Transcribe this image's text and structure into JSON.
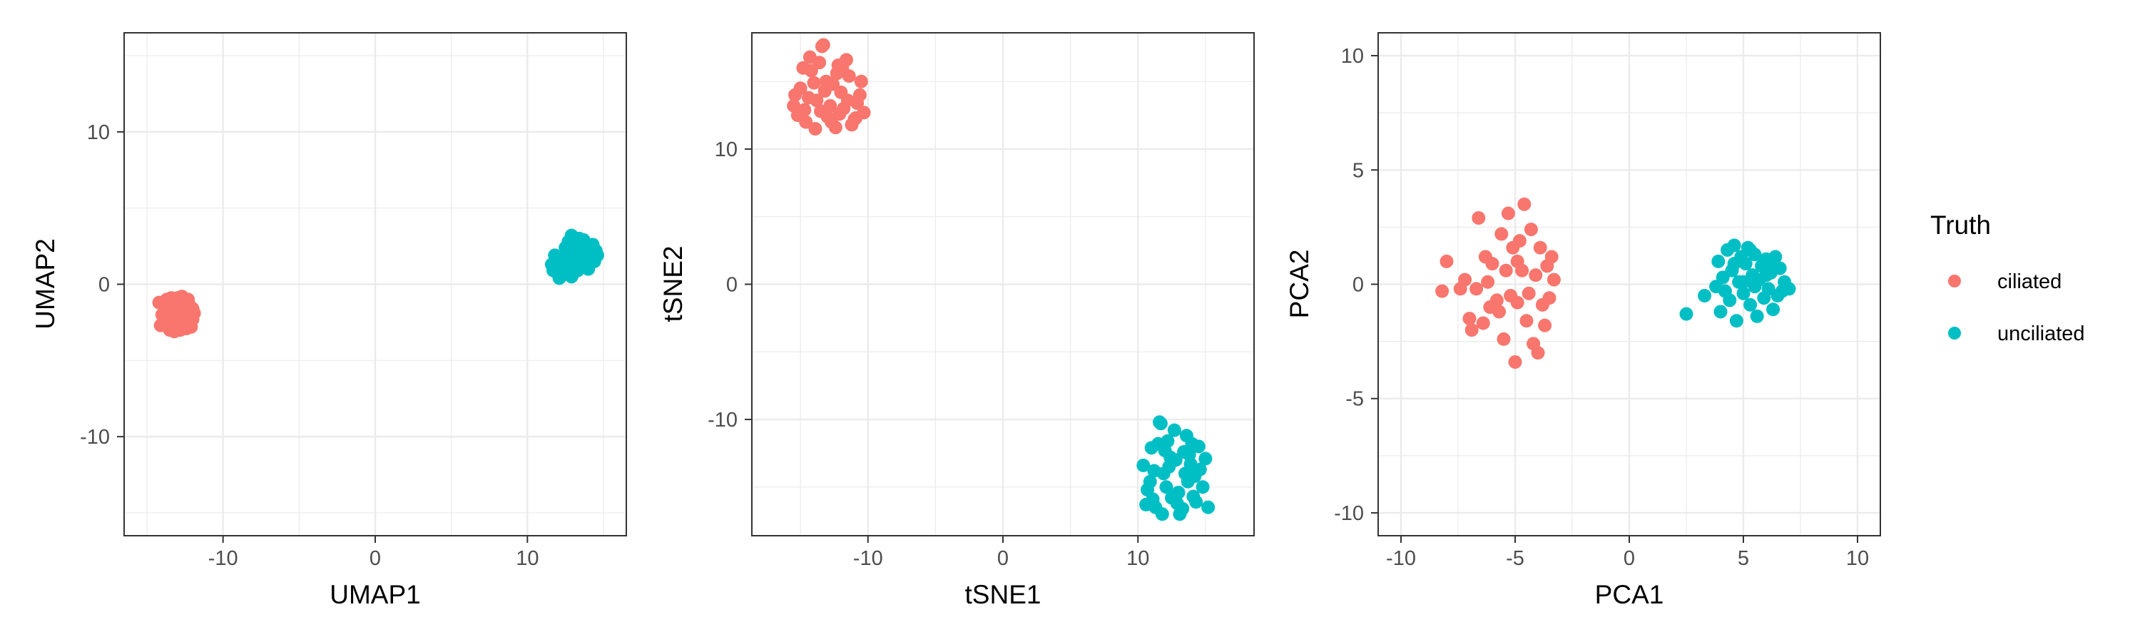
{
  "colors": {
    "ciliated": "#F8766D",
    "unciliated": "#00BFC4",
    "grid": "#ebebeb",
    "panel_border": "#333333"
  },
  "legend": {
    "title": "Truth",
    "entries": [
      {
        "label": "ciliated",
        "color": "#F8766D"
      },
      {
        "label": "unciliated",
        "color": "#00BFC4"
      }
    ]
  },
  "chart_data": [
    {
      "type": "scatter",
      "id": "umap",
      "xlabel": "UMAP1",
      "ylabel": "UMAP2",
      "xlim": [
        -16.5,
        16.5
      ],
      "ylim": [
        -16.5,
        16.5
      ],
      "x_ticks": [
        -10,
        0,
        10
      ],
      "y_ticks": [
        -10,
        0,
        10
      ],
      "x_tick_labels": [
        "-10",
        "0",
        "10"
      ],
      "y_tick_labels": [
        "-10",
        "0",
        "10"
      ],
      "grid": true,
      "series": [
        {
          "name": "ciliated",
          "points": [
            [
              -14.2,
              -1.2
            ],
            [
              -13.9,
              -2.6
            ],
            [
              -13.6,
              -1.8
            ],
            [
              -13.3,
              -2.9
            ],
            [
              -13.0,
              -0.9
            ],
            [
              -12.7,
              -2.2
            ],
            [
              -12.4,
              -1.5
            ],
            [
              -12.1,
              -2.8
            ],
            [
              -14.0,
              -2.0
            ],
            [
              -13.7,
              -1.0
            ],
            [
              -13.4,
              -2.4
            ],
            [
              -13.1,
              -1.7
            ],
            [
              -12.8,
              -3.0
            ],
            [
              -12.5,
              -1.1
            ],
            [
              -12.2,
              -2.5
            ],
            [
              -11.9,
              -1.9
            ],
            [
              -14.1,
              -2.7
            ],
            [
              -13.8,
              -1.4
            ],
            [
              -13.5,
              -3.0
            ],
            [
              -13.2,
              -2.1
            ],
            [
              -12.9,
              -1.3
            ],
            [
              -12.6,
              -2.6
            ],
            [
              -12.3,
              -1.0
            ],
            [
              -12.0,
              -2.3
            ],
            [
              -13.6,
              -2.5
            ],
            [
              -13.0,
              -1.6
            ],
            [
              -12.5,
              -2.0
            ],
            [
              -13.3,
              -1.2
            ],
            [
              -12.8,
              -2.8
            ],
            [
              -13.9,
              -1.9
            ],
            [
              -12.2,
              -1.4
            ],
            [
              -13.1,
              -2.6
            ],
            [
              -12.7,
              -0.8
            ],
            [
              -13.5,
              -1.5
            ],
            [
              -12.4,
              -2.9
            ],
            [
              -13.8,
              -2.3
            ],
            [
              -12.9,
              -2.2
            ],
            [
              -13.4,
              -0.9
            ],
            [
              -12.0,
              -1.6
            ],
            [
              -13.2,
              -3.1
            ]
          ]
        },
        {
          "name": "unciliated",
          "points": [
            [
              11.6,
              1.3
            ],
            [
              11.9,
              0.8
            ],
            [
              12.2,
              1.8
            ],
            [
              12.5,
              2.4
            ],
            [
              12.8,
              1.1
            ],
            [
              13.1,
              2.9
            ],
            [
              13.4,
              1.6
            ],
            [
              13.7,
              2.2
            ],
            [
              14.0,
              1.4
            ],
            [
              14.3,
              2.6
            ],
            [
              14.6,
              1.9
            ],
            [
              12.0,
              1.5
            ],
            [
              12.3,
              0.6
            ],
            [
              12.6,
              2.1
            ],
            [
              12.9,
              3.2
            ],
            [
              13.2,
              1.3
            ],
            [
              13.5,
              2.7
            ],
            [
              13.8,
              1.7
            ],
            [
              14.1,
              2.3
            ],
            [
              14.4,
              1.5
            ],
            [
              11.8,
              1.9
            ],
            [
              12.4,
              1.0
            ],
            [
              12.7,
              2.8
            ],
            [
              13.0,
              1.8
            ],
            [
              13.3,
              0.9
            ],
            [
              13.6,
              2.5
            ],
            [
              13.9,
              1.2
            ],
            [
              14.2,
              2.0
            ],
            [
              12.1,
              0.4
            ],
            [
              12.8,
              2.0
            ],
            [
              13.4,
              3.0
            ],
            [
              13.0,
              0.7
            ],
            [
              14.5,
              2.2
            ],
            [
              12.5,
              1.4
            ],
            [
              13.6,
              1.5
            ],
            [
              11.7,
              0.9
            ],
            [
              13.2,
              2.4
            ],
            [
              14.0,
              1.0
            ],
            [
              12.9,
              0.5
            ],
            [
              13.7,
              2.9
            ]
          ]
        }
      ]
    },
    {
      "type": "scatter",
      "id": "tsne",
      "xlabel": "tSNE1",
      "ylabel": "tSNE2",
      "xlim": [
        -18.6,
        18.6
      ],
      "ylim": [
        -18.6,
        18.6
      ],
      "x_ticks": [
        -10,
        0,
        10
      ],
      "y_ticks": [
        -10,
        0,
        10
      ],
      "x_tick_labels": [
        "-10",
        "0",
        "10"
      ],
      "y_tick_labels": [
        "-10",
        "0",
        "10"
      ],
      "grid": true,
      "series": [
        {
          "name": "ciliated",
          "points": [
            [
              -15.5,
              13.2
            ],
            [
              -15.0,
              14.5
            ],
            [
              -14.6,
              12.0
            ],
            [
              -14.2,
              15.8
            ],
            [
              -13.8,
              13.6
            ],
            [
              -13.4,
              17.6
            ],
            [
              -13.0,
              12.4
            ],
            [
              -12.6,
              14.8
            ],
            [
              -12.2,
              16.2
            ],
            [
              -11.8,
              13.0
            ],
            [
              -11.4,
              15.4
            ],
            [
              -11.0,
              12.2
            ],
            [
              -10.6,
              14.0
            ],
            [
              -10.3,
              12.7
            ],
            [
              -14.8,
              16.0
            ],
            [
              -13.9,
              11.5
            ],
            [
              -13.1,
              15.0
            ],
            [
              -12.4,
              11.6
            ],
            [
              -11.6,
              16.6
            ],
            [
              -10.8,
              13.4
            ],
            [
              -15.2,
              12.5
            ],
            [
              -14.4,
              13.8
            ],
            [
              -13.6,
              16.4
            ],
            [
              -12.8,
              13.2
            ],
            [
              -12.0,
              14.2
            ],
            [
              -11.2,
              11.8
            ],
            [
              -10.5,
              15.0
            ],
            [
              -14.0,
              14.9
            ],
            [
              -13.3,
              17.7
            ],
            [
              -12.7,
              12.0
            ],
            [
              -11.9,
              16.0
            ],
            [
              -14.7,
              12.9
            ],
            [
              -13.5,
              12.8
            ],
            [
              -12.3,
              15.6
            ],
            [
              -11.5,
              13.6
            ],
            [
              -14.3,
              16.8
            ],
            [
              -10.9,
              12.3
            ],
            [
              -13.2,
              14.3
            ],
            [
              -12.1,
              12.6
            ],
            [
              -15.4,
              14.0
            ]
          ]
        },
        {
          "name": "unciliated",
          "points": [
            [
              10.4,
              -13.4
            ],
            [
              10.7,
              -15.2
            ],
            [
              11.0,
              -12.1
            ],
            [
              11.3,
              -16.5
            ],
            [
              11.6,
              -10.2
            ],
            [
              11.9,
              -14.0
            ],
            [
              12.2,
              -11.6
            ],
            [
              12.5,
              -15.8
            ],
            [
              12.8,
              -13.0
            ],
            [
              13.1,
              -17.0
            ],
            [
              13.4,
              -12.4
            ],
            [
              13.7,
              -14.6
            ],
            [
              14.0,
              -11.8
            ],
            [
              14.3,
              -16.1
            ],
            [
              14.6,
              -13.7
            ],
            [
              15.0,
              -12.9
            ],
            [
              15.2,
              -16.5
            ],
            [
              10.6,
              -16.3
            ],
            [
              11.2,
              -13.8
            ],
            [
              11.8,
              -17.0
            ],
            [
              12.4,
              -12.8
            ],
            [
              13.0,
              -15.4
            ],
            [
              13.6,
              -11.2
            ],
            [
              14.2,
              -14.2
            ],
            [
              14.8,
              -15.0
            ],
            [
              11.5,
              -11.8
            ],
            [
              12.1,
              -15.0
            ],
            [
              12.7,
              -10.8
            ],
            [
              13.3,
              -16.6
            ],
            [
              13.9,
              -13.3
            ],
            [
              14.5,
              -12.0
            ],
            [
              10.9,
              -14.6
            ],
            [
              11.7,
              -10.3
            ],
            [
              12.3,
              -13.5
            ],
            [
              12.9,
              -16.2
            ],
            [
              13.5,
              -14.0
            ],
            [
              14.1,
              -15.7
            ],
            [
              12.0,
              -12.3
            ],
            [
              13.8,
              -12.6
            ],
            [
              11.1,
              -15.9
            ]
          ]
        }
      ]
    },
    {
      "type": "scatter",
      "id": "pca",
      "xlabel": "PCA1",
      "ylabel": "PCA2",
      "xlim": [
        -11.0,
        11.0
      ],
      "ylim": [
        -11.0,
        11.0
      ],
      "x_ticks": [
        -10,
        -5,
        0,
        5,
        10
      ],
      "y_ticks": [
        -10,
        -5,
        0,
        5,
        10
      ],
      "x_tick_labels": [
        "-10",
        "-5",
        "0",
        "5",
        "10"
      ],
      "y_tick_labels": [
        "-10",
        "-5",
        "0",
        "5",
        "10"
      ],
      "grid": true,
      "series": [
        {
          "name": "ciliated",
          "points": [
            [
              -8.2,
              -0.3
            ],
            [
              -8.0,
              1.0
            ],
            [
              -7.4,
              -0.2
            ],
            [
              -7.2,
              0.2
            ],
            [
              -7.0,
              -1.5
            ],
            [
              -6.9,
              -2.0
            ],
            [
              -6.7,
              -0.2
            ],
            [
              -6.6,
              2.9
            ],
            [
              -6.4,
              -1.7
            ],
            [
              -6.3,
              1.2
            ],
            [
              -6.1,
              -1.0
            ],
            [
              -6.0,
              0.9
            ],
            [
              -5.8,
              -0.7
            ],
            [
              -5.6,
              2.2
            ],
            [
              -5.5,
              -2.4
            ],
            [
              -5.4,
              0.6
            ],
            [
              -5.3,
              3.1
            ],
            [
              -5.2,
              -0.5
            ],
            [
              -5.1,
              1.6
            ],
            [
              -5.0,
              -3.4
            ],
            [
              -4.9,
              -0.8
            ],
            [
              -4.8,
              1.9
            ],
            [
              -4.7,
              0.6
            ],
            [
              -4.6,
              3.5
            ],
            [
              -4.5,
              -1.6
            ],
            [
              -4.4,
              -0.4
            ],
            [
              -4.3,
              2.4
            ],
            [
              -4.2,
              -2.6
            ],
            [
              -4.1,
              0.4
            ],
            [
              -4.0,
              -3.0
            ],
            [
              -3.9,
              1.6
            ],
            [
              -3.8,
              -0.9
            ],
            [
              -3.7,
              -1.8
            ],
            [
              -3.6,
              0.8
            ],
            [
              -3.5,
              -0.6
            ],
            [
              -3.4,
              1.2
            ],
            [
              -3.3,
              0.2
            ],
            [
              -5.7,
              -1.2
            ],
            [
              -4.9,
              1.0
            ],
            [
              -6.2,
              0.1
            ]
          ]
        },
        {
          "name": "unciliated",
          "points": [
            [
              2.5,
              -1.3
            ],
            [
              3.3,
              -0.5
            ],
            [
              3.8,
              -0.1
            ],
            [
              3.9,
              1.0
            ],
            [
              4.0,
              -1.2
            ],
            [
              4.1,
              0.3
            ],
            [
              4.3,
              1.5
            ],
            [
              4.4,
              -0.7
            ],
            [
              4.5,
              0.6
            ],
            [
              4.6,
              1.7
            ],
            [
              4.7,
              -1.6
            ],
            [
              4.8,
              0.1
            ],
            [
              4.9,
              1.2
            ],
            [
              5.0,
              -0.4
            ],
            [
              5.1,
              0.9
            ],
            [
              5.2,
              1.6
            ],
            [
              5.3,
              -0.9
            ],
            [
              5.4,
              0.4
            ],
            [
              5.5,
              1.3
            ],
            [
              5.6,
              -1.4
            ],
            [
              5.7,
              0.2
            ],
            [
              5.8,
              0.8
            ],
            [
              5.9,
              -0.6
            ],
            [
              6.0,
              1.1
            ],
            [
              6.1,
              -0.2
            ],
            [
              6.2,
              0.5
            ],
            [
              6.3,
              -1.1
            ],
            [
              6.4,
              1.2
            ],
            [
              6.5,
              -0.5
            ],
            [
              6.6,
              0.7
            ],
            [
              6.7,
              -0.3
            ],
            [
              6.8,
              0.1
            ],
            [
              7.0,
              -0.2
            ],
            [
              5.0,
              0.1
            ],
            [
              5.5,
              -0.1
            ],
            [
              4.6,
              0.9
            ],
            [
              6.0,
              0.4
            ],
            [
              5.3,
              1.5
            ],
            [
              4.2,
              -0.3
            ],
            [
              6.3,
              0.9
            ]
          ]
        }
      ]
    }
  ]
}
